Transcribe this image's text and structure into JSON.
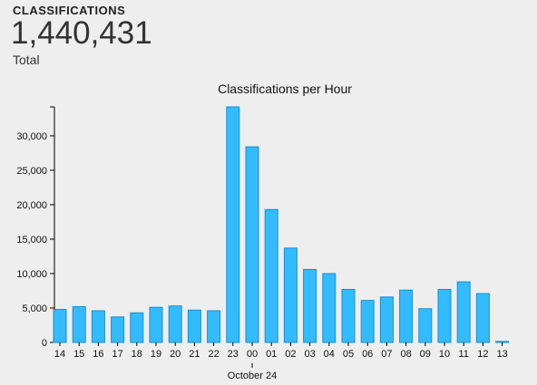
{
  "stats": {
    "heading": "CLASSIFICATIONS",
    "value": "1,440,431",
    "label": "Total"
  },
  "chart_data": {
    "type": "bar",
    "title": "Classifications per Hour",
    "categories": [
      "14",
      "15",
      "16",
      "17",
      "18",
      "19",
      "20",
      "21",
      "22",
      "23",
      "00",
      "01",
      "02",
      "03",
      "04",
      "05",
      "06",
      "07",
      "08",
      "09",
      "10",
      "11",
      "12",
      "13"
    ],
    "values": [
      4800,
      5200,
      4600,
      3700,
      4300,
      5100,
      5300,
      4700,
      4600,
      34200,
      28400,
      19300,
      13700,
      10600,
      10000,
      7700,
      6100,
      6600,
      7600,
      4900,
      7700,
      8800,
      7100,
      150
    ],
    "ylim": [
      0,
      34200
    ],
    "yticks": [
      0,
      5000,
      10000,
      15000,
      20000,
      25000,
      30000
    ],
    "ytick_labels": [
      "0",
      "5,000",
      "10,000",
      "15,000",
      "20,000",
      "25,000",
      "30,000"
    ],
    "date_marker": {
      "category": "00",
      "label": "October 24"
    },
    "bar_color": "#33bbff",
    "bar_stroke": "#1a8fd0",
    "grid": false,
    "legend": "none"
  }
}
